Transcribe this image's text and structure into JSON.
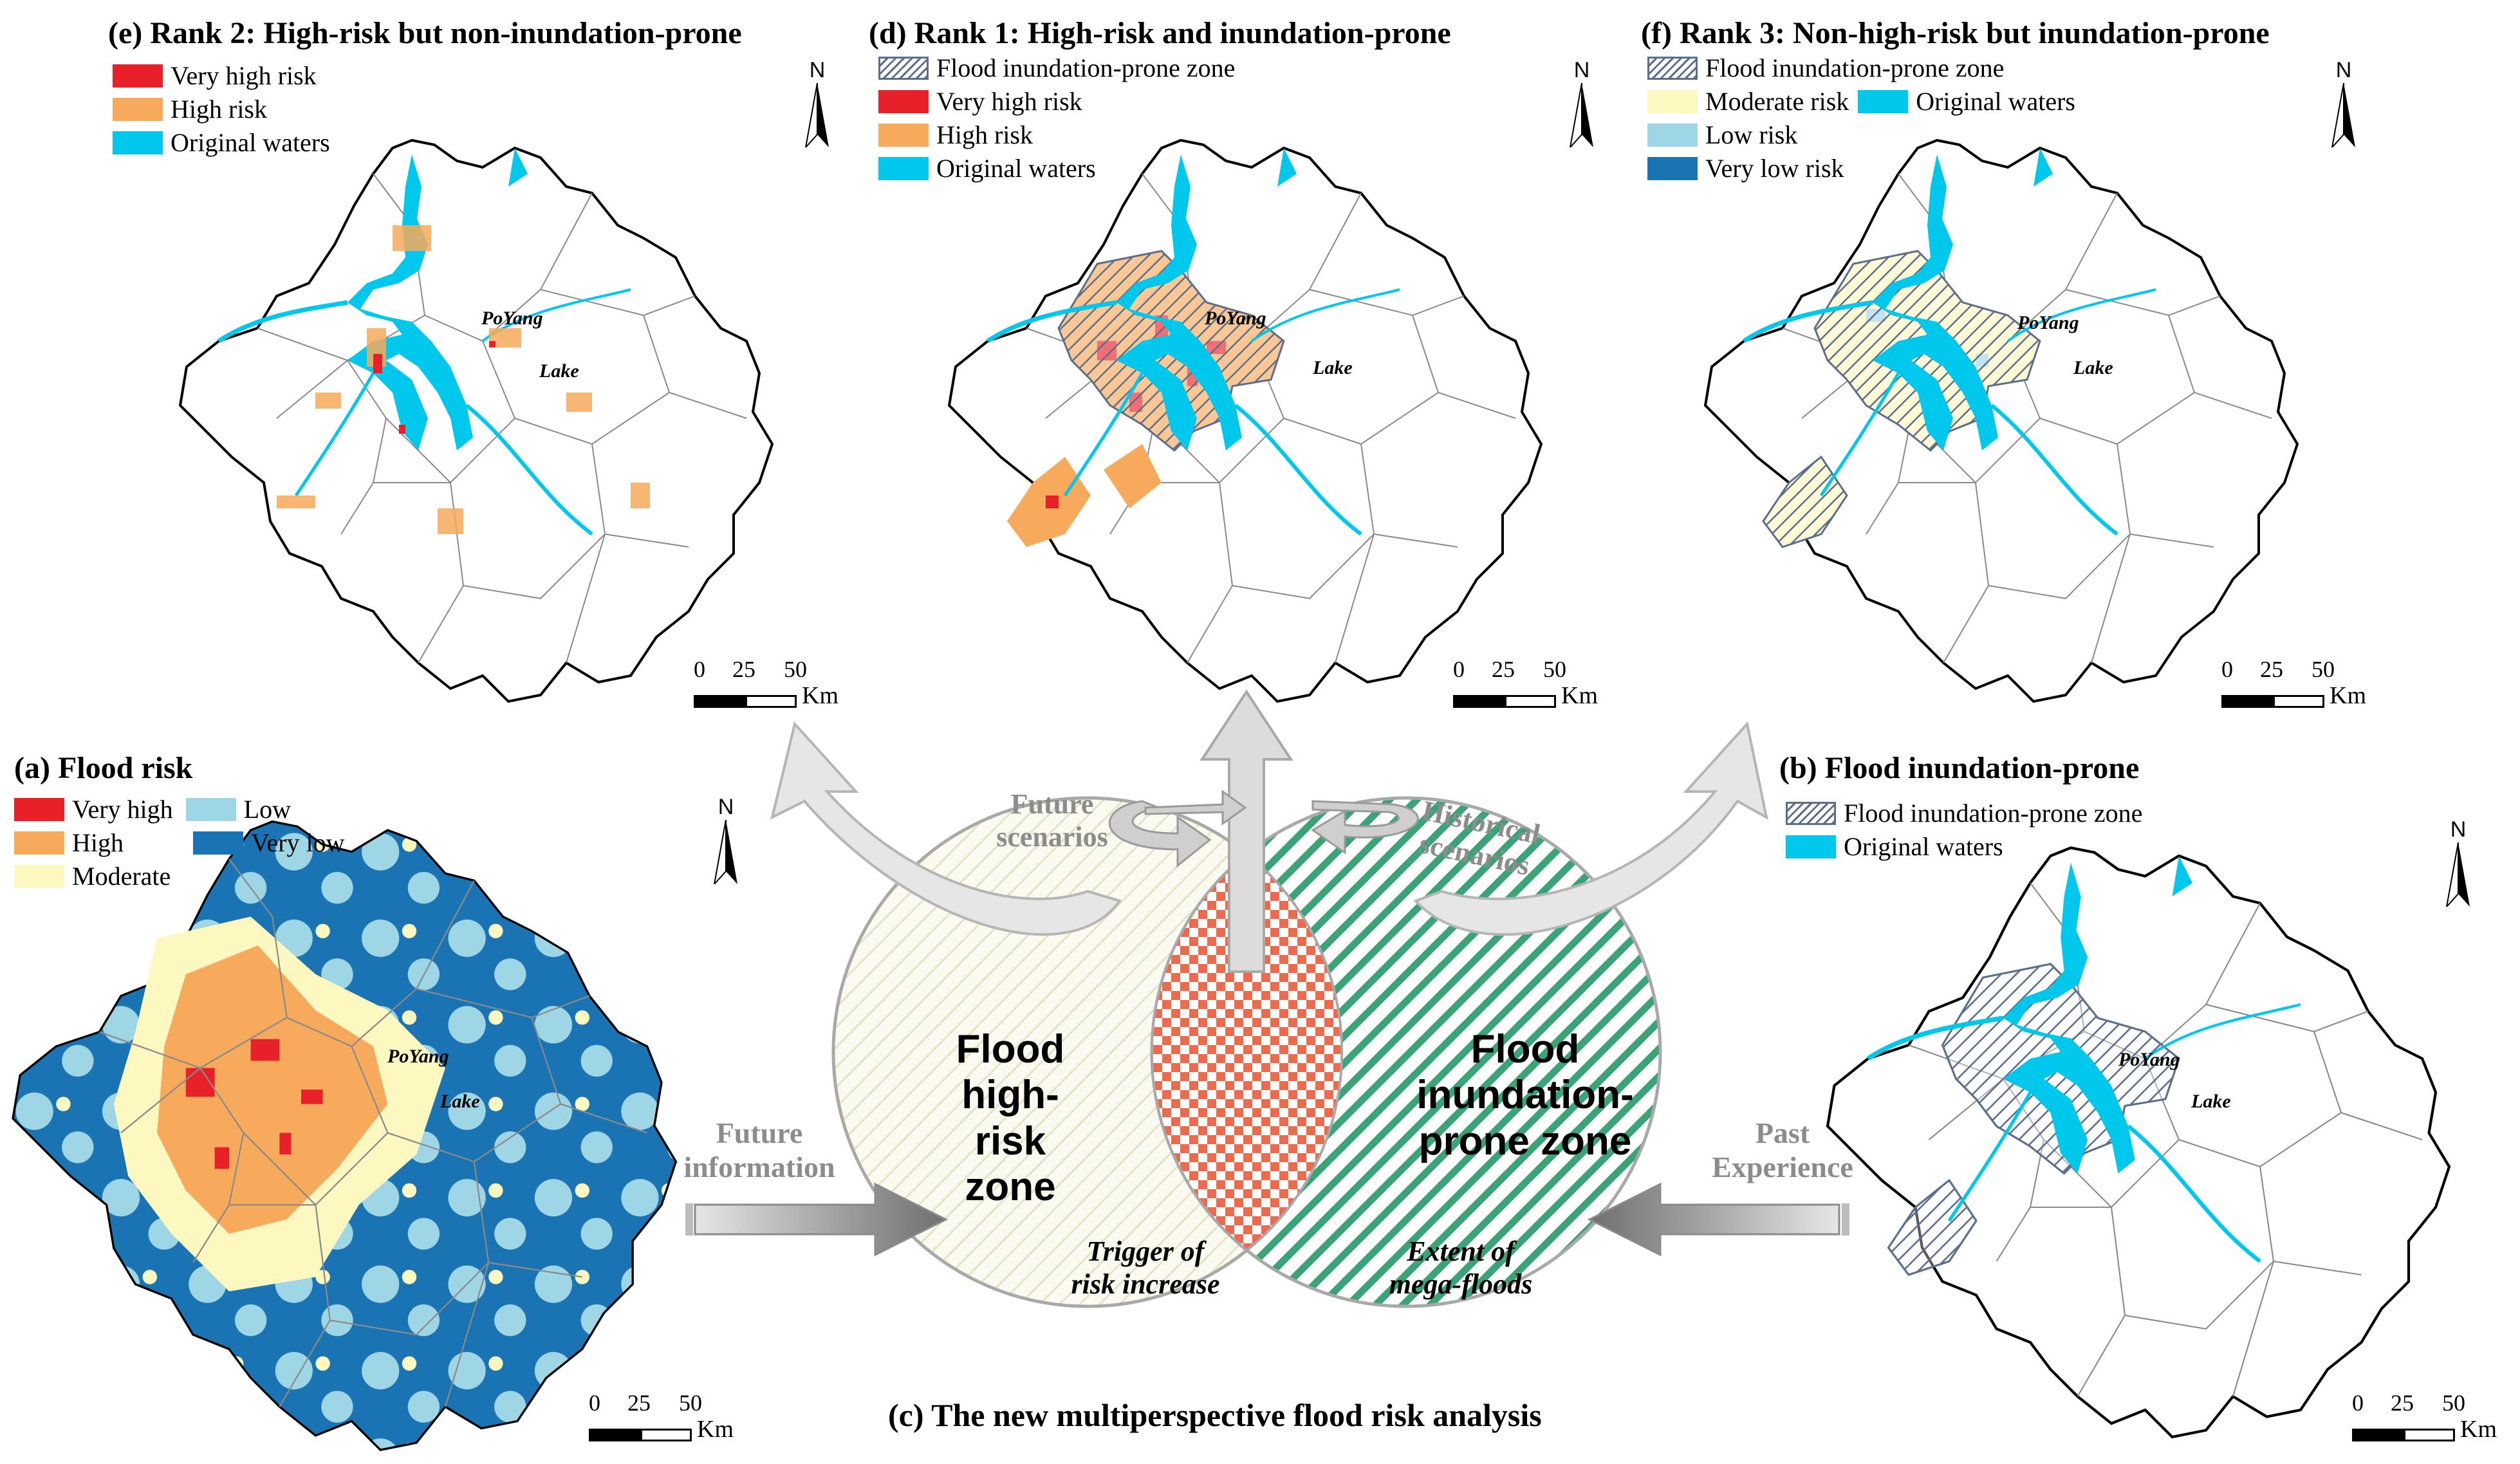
{
  "panels": {
    "e": {
      "title": "(e) Rank 2: High-risk but non-inundation-prone",
      "legend": [
        "Very high risk",
        "High risk",
        "Original waters"
      ]
    },
    "d": {
      "title": "(d) Rank 1: High-risk and inundation-prone",
      "legend": [
        "Flood inundation-prone zone",
        "Very high risk",
        "High risk",
        "Original waters"
      ]
    },
    "f": {
      "title": "(f) Rank 3: Non-high-risk but inundation-prone",
      "legend": [
        "Flood inundation-prone zone",
        "Moderate risk",
        "Original waters",
        "Low risk",
        "Very low risk"
      ]
    },
    "a": {
      "title": "(a) Flood risk",
      "legend": [
        "Very high",
        "Low",
        "High",
        "Very low",
        "Moderate"
      ]
    },
    "b": {
      "title": "(b) Flood inundation-prone",
      "legend": [
        "Flood inundation-prone zone",
        "Original waters"
      ]
    }
  },
  "map_labels": {
    "poyang": "PoYang",
    "lake": "Lake",
    "north": "N"
  },
  "scale_bar": {
    "ticks": [
      "0",
      "25",
      "50"
    ],
    "unit": "Km"
  },
  "venn": {
    "left_label": [
      "Flood",
      "high-risk",
      "zone"
    ],
    "right_label": [
      "Flood",
      "inundation-",
      "prone zone"
    ],
    "left_note": [
      "Trigger of",
      "risk increase"
    ],
    "right_note": [
      "Extent of",
      "mega-floods"
    ],
    "future_scenarios": [
      "Future",
      "scenarios"
    ],
    "historical_scenarios": [
      "Historical",
      "scenarios"
    ],
    "future_information": [
      "Future",
      "information"
    ],
    "past_experience": [
      "Past",
      "Experience"
    ],
    "caption": "(c) The new multiperspective flood risk analysis"
  },
  "colors": {
    "very_high": "#e8202a",
    "high": "#f7a95c",
    "moderate": "#fdf8c0",
    "low": "#9fd6e6",
    "very_low": "#1a73b3",
    "water": "#00c8ec",
    "hatch": "#5b6f8d",
    "venn_green": "#3aa377",
    "venn_checker": "#ec6b4f"
  }
}
